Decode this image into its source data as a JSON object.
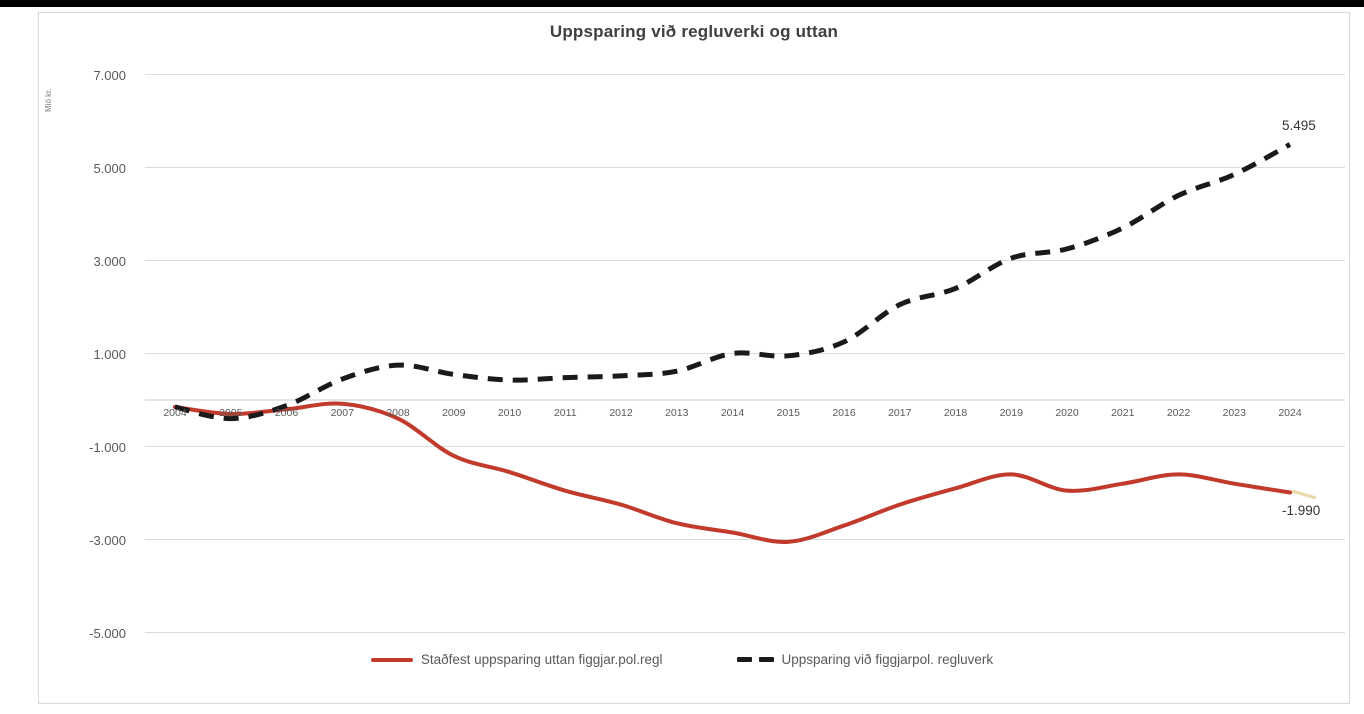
{
  "window": {
    "top_bar": "video-frame-edge"
  },
  "chart_data": {
    "type": "line",
    "title": "Uppsparing við regluverki og uttan",
    "y_axis_unit": "Mió kr.",
    "xlabel": "",
    "ylabel": "Mió kr.",
    "grid": "horizontal",
    "legend_position": "bottom",
    "ylim": [
      -5800,
      7600
    ],
    "y_ticks": [
      7000,
      5000,
      3000,
      1000,
      -1000,
      -3000,
      -5000
    ],
    "y_tick_labels": [
      "7.000",
      "5.000",
      "3.000",
      "1.000",
      "-1.000",
      "-3.000",
      "-5.000"
    ],
    "categories": [
      2004,
      2005,
      2006,
      2007,
      2008,
      2009,
      2010,
      2011,
      2012,
      2013,
      2014,
      2015,
      2016,
      2017,
      2018,
      2019,
      2020,
      2021,
      2022,
      2023,
      2024
    ],
    "series": [
      {
        "name": "Staðfest uppsparing uttan figgjar.pol.regl",
        "style": "solid",
        "color": "#c13a2c",
        "values": [
          -150,
          -300,
          -200,
          -80,
          -400,
          -1200,
          -1550,
          -1950,
          -2250,
          -2650,
          -2850,
          -3050,
          -2700,
          -2250,
          -1900,
          -1600,
          -1950,
          -1800,
          -1600,
          -1800,
          -1990
        ],
        "end_label": "-1.990"
      },
      {
        "name": "Uppsparing við figgjarpol. regluverk",
        "style": "dashed",
        "color": "#1a1a1a",
        "values": [
          -150,
          -400,
          -120,
          450,
          750,
          550,
          430,
          480,
          520,
          620,
          1000,
          950,
          1250,
          2050,
          2400,
          3050,
          3250,
          3700,
          4400,
          4850,
          5495
        ],
        "end_label": "5.495"
      }
    ]
  }
}
